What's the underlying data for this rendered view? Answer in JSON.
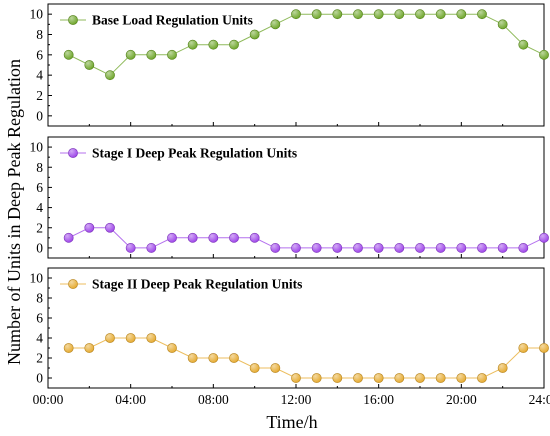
{
  "chart_data": {
    "type": "line",
    "layout": "three vertically stacked panels sharing the x axis",
    "xlabel": "Time/h",
    "ylabel": "Number of Units in Deep Peak Regulation",
    "x_ticks": [
      "00:00",
      "04:00",
      "08:00",
      "12:00",
      "16:00",
      "20:00",
      "24:00"
    ],
    "x_range_hours": [
      0,
      24
    ],
    "x_hours": [
      1,
      2,
      3,
      4,
      5,
      6,
      7,
      8,
      9,
      10,
      11,
      12,
      13,
      14,
      15,
      16,
      17,
      18,
      19,
      20,
      21,
      22,
      23,
      24
    ],
    "y_range": [
      -1,
      11
    ],
    "y_ticks": [
      "0",
      "2",
      "4",
      "6",
      "8",
      "10"
    ],
    "grid": false,
    "legend_placement": "top-left inside each panel",
    "series": [
      {
        "name": "Base Load Regulation Units",
        "color": "#6aa324",
        "values": [
          6,
          5,
          4,
          6,
          6,
          6,
          7,
          7,
          7,
          8,
          9,
          10,
          10,
          10,
          10,
          10,
          10,
          10,
          10,
          10,
          10,
          9,
          7,
          6
        ]
      },
      {
        "name": "Stage I Deep Peak Regulation Units",
        "color": "#9b40e8",
        "values": [
          1,
          2,
          2,
          0,
          0,
          1,
          1,
          1,
          1,
          1,
          0,
          0,
          0,
          0,
          0,
          0,
          0,
          0,
          0,
          0,
          0,
          0,
          0,
          1
        ]
      },
      {
        "name": "Stage II Deep Peak Regulation Units",
        "color": "#e5a82a",
        "values": [
          3,
          3,
          4,
          4,
          4,
          3,
          2,
          2,
          2,
          1,
          1,
          0,
          0,
          0,
          0,
          0,
          0,
          0,
          0,
          0,
          0,
          1,
          3,
          3
        ]
      }
    ]
  }
}
